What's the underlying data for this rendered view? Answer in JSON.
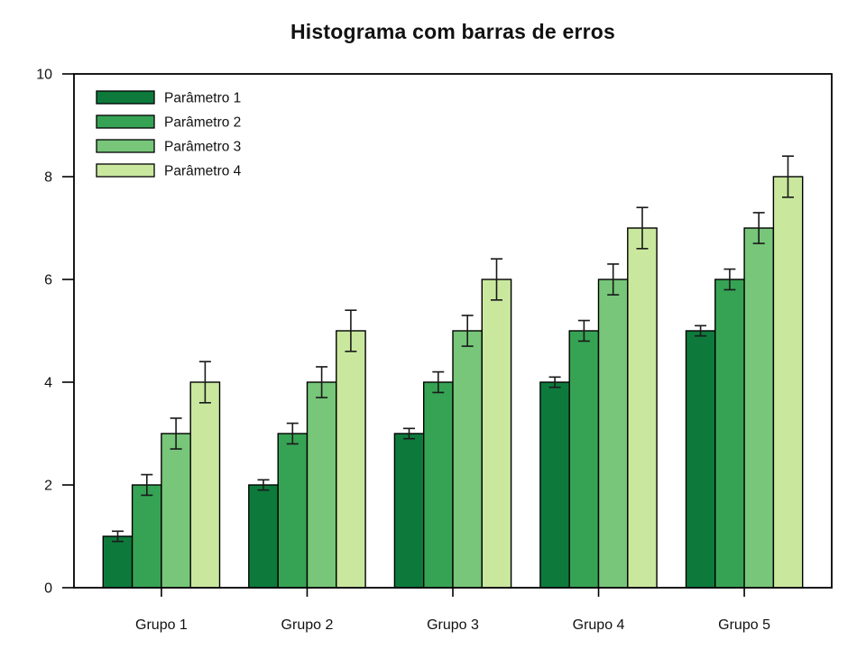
{
  "chart_data": {
    "type": "bar",
    "title": "Histograma com barras de erros",
    "categories": [
      "Grupo 1",
      "Grupo 2",
      "Grupo 3",
      "Grupo 4",
      "Grupo 5"
    ],
    "series": [
      {
        "name": "Parâmetro 1",
        "color": "#0d7a3c",
        "values": [
          1,
          2,
          3,
          4,
          5
        ],
        "errors": [
          0.1,
          0.1,
          0.1,
          0.1,
          0.1
        ]
      },
      {
        "name": "Parâmetro 2",
        "color": "#36a354",
        "values": [
          2,
          3,
          4,
          5,
          6
        ],
        "errors": [
          0.2,
          0.2,
          0.2,
          0.2,
          0.2
        ]
      },
      {
        "name": "Parâmetro 3",
        "color": "#77c679",
        "values": [
          3,
          4,
          5,
          6,
          7
        ],
        "errors": [
          0.3,
          0.3,
          0.3,
          0.3,
          0.3
        ]
      },
      {
        "name": "Parâmetro 4",
        "color": "#c9e89e",
        "values": [
          4,
          5,
          6,
          7,
          8
        ],
        "errors": [
          0.4,
          0.4,
          0.4,
          0.4,
          0.4
        ]
      }
    ],
    "xlabel": "",
    "ylabel": "",
    "ylim": [
      0,
      10
    ],
    "yticks": [
      0,
      2,
      4,
      6,
      8,
      10
    ],
    "grid": false,
    "legend_position": "upper-left",
    "bar_edge_color": "#000000",
    "error_bar_color": "#1a1a1a",
    "frame_color": "#000000",
    "background_color": "#ffffff"
  }
}
